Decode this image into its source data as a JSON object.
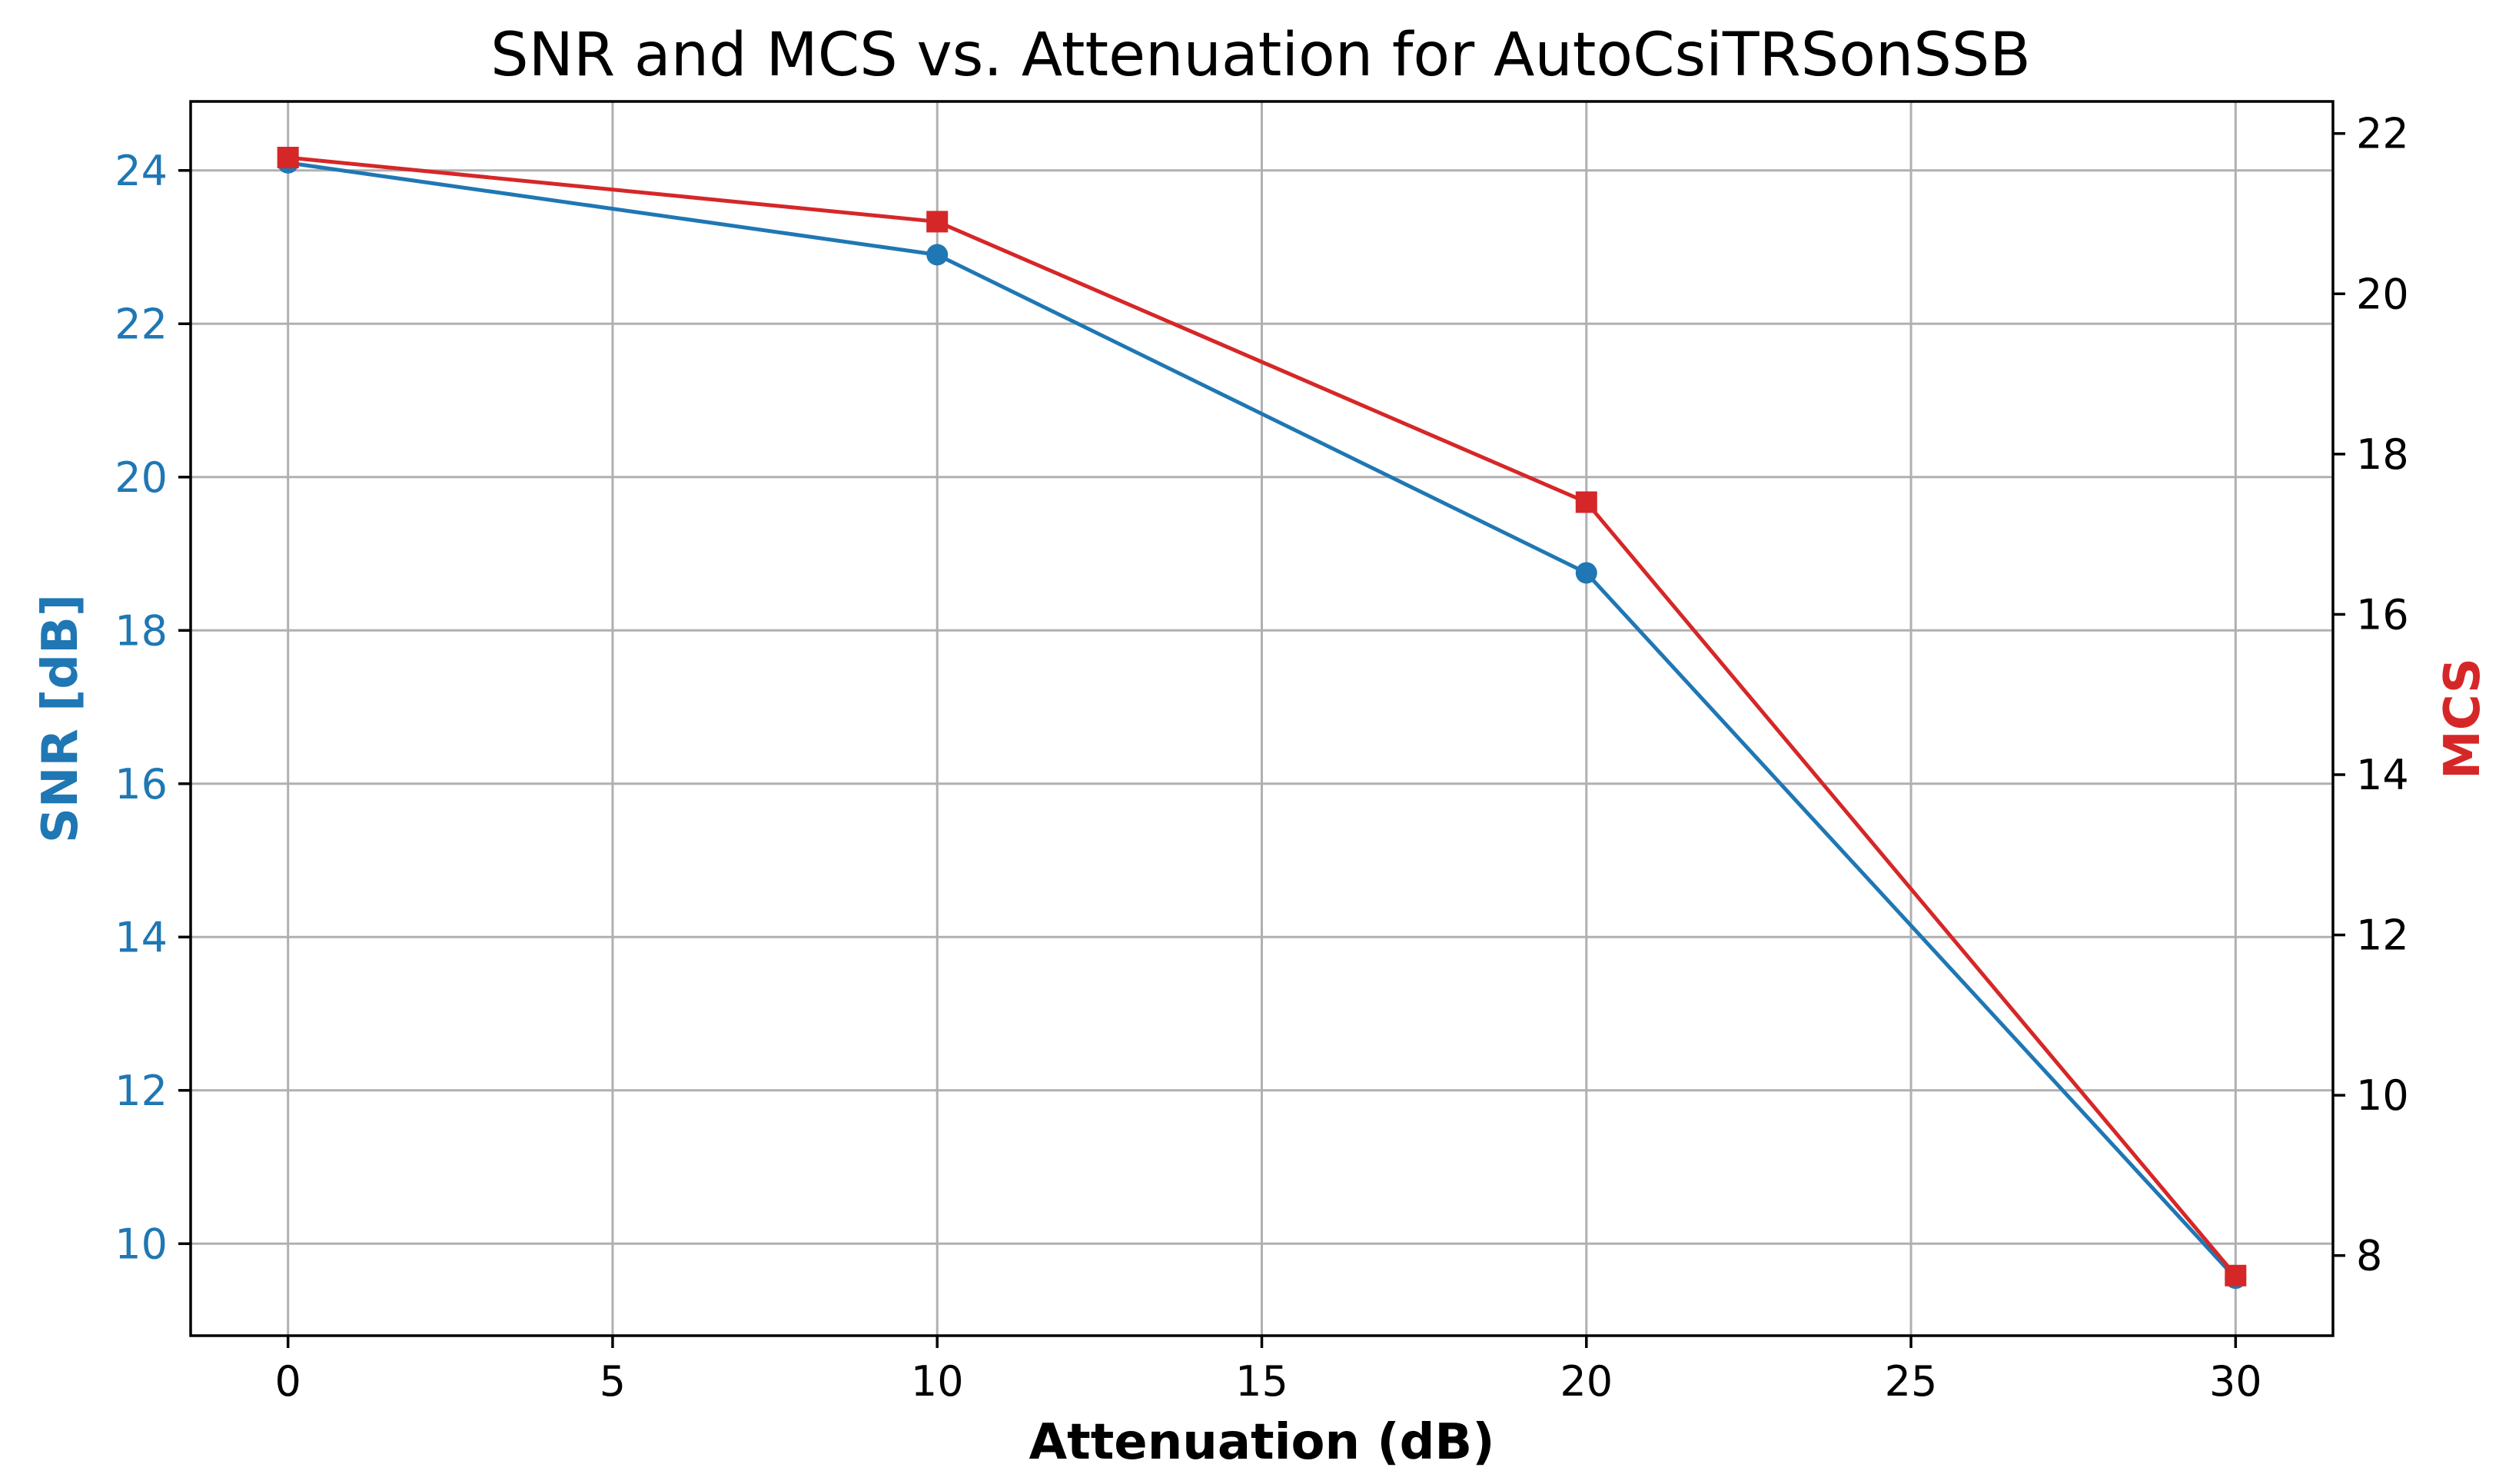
{
  "chart_data": {
    "type": "line",
    "title": "SNR and MCS vs. Attenuation for AutoCsiTRSonSSB",
    "xlabel": "Attenuation (dB)",
    "x": [
      0,
      10,
      20,
      30
    ],
    "xlim": [
      -1.5,
      31.5
    ],
    "xticks": [
      0,
      5,
      10,
      15,
      20,
      25,
      30
    ],
    "grid": true,
    "legend": "none",
    "axes": {
      "left": {
        "label": "SNR [dB]",
        "color": "#1f77b4",
        "ylim": [
          8.8,
          24.9
        ],
        "ticks": [
          10,
          12,
          14,
          16,
          18,
          20,
          22,
          24
        ]
      },
      "right": {
        "label": "MCS",
        "color": "#d62728",
        "ylim": [
          7.0,
          22.4
        ],
        "ticks": [
          8,
          10,
          12,
          14,
          16,
          18,
          20,
          22
        ]
      }
    },
    "series": [
      {
        "axis": "left",
        "color": "#1f77b4",
        "marker": "circle",
        "values": [
          24.1,
          22.9,
          18.75,
          9.55
        ]
      },
      {
        "axis": "right",
        "color": "#d62728",
        "marker": "square",
        "values": [
          21.7,
          20.9,
          17.4,
          7.75
        ]
      }
    ]
  }
}
